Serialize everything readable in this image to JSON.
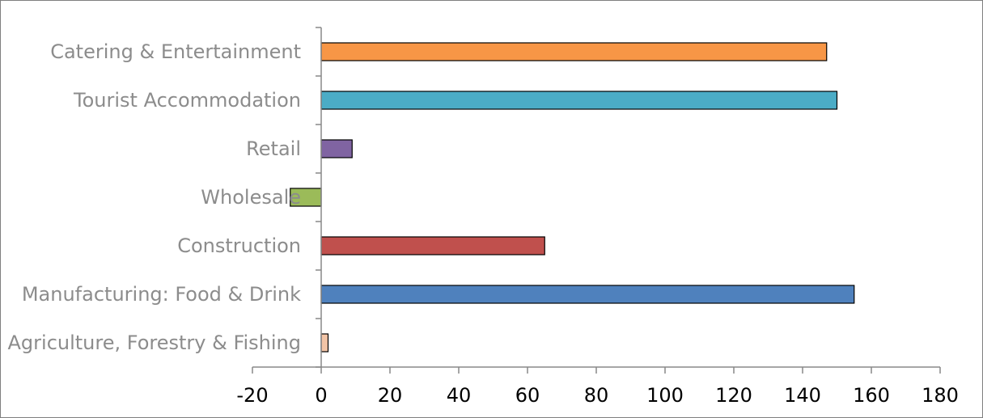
{
  "chart_data": {
    "type": "bar",
    "orientation": "horizontal",
    "title": "",
    "xlabel": "",
    "ylabel": "",
    "xlim": [
      -20,
      180
    ],
    "x_ticks": [
      -20,
      0,
      20,
      40,
      60,
      80,
      100,
      120,
      140,
      160,
      180
    ],
    "grid": false,
    "legend": "none",
    "categories": [
      "Catering & Entertainment",
      "Tourist Accommodation",
      "Retail",
      "Wholesale",
      "Construction",
      "Manufacturing: Food & Drink",
      "Agriculture, Forestry & Fishing"
    ],
    "values": [
      147,
      150,
      9,
      -9,
      65,
      155,
      2
    ],
    "colors": [
      "#f79646",
      "#4bacc6",
      "#8064a2",
      "#9bbb59",
      "#c0504d",
      "#4f81bd",
      "#f2c4a6"
    ]
  }
}
